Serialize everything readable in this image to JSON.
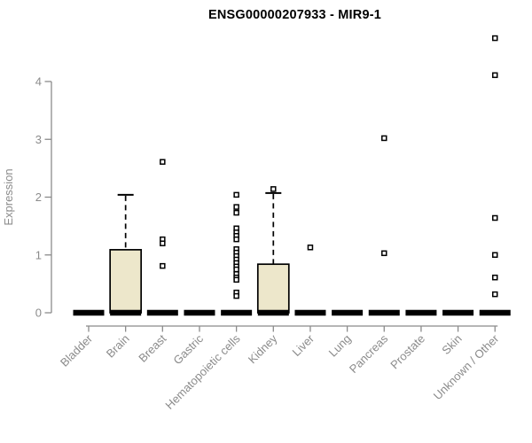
{
  "title": "ENSG00000207933 - MIR9-1",
  "chart_data": {
    "type": "boxplot",
    "title": "ENSG00000207933 - MIR9-1",
    "xlabel": "",
    "ylabel": "Expression",
    "ylim": [
      0,
      4.8
    ],
    "yticks": [
      0,
      1,
      2,
      3,
      4
    ],
    "grid": false,
    "legend_position": "none",
    "categories": [
      "Bladder",
      "Brain",
      "Breast",
      "Gastric",
      "Hematopoietic cells",
      "Kidney",
      "Liver",
      "Lung",
      "Pancreas",
      "Prostate",
      "Skin",
      "Unknown / Other"
    ],
    "boxes": [
      {
        "category": "Bladder",
        "median": 0,
        "q1": 0,
        "q3": 0,
        "whisker_low": 0,
        "whisker_high": 0,
        "outliers": []
      },
      {
        "category": "Brain",
        "median": 0,
        "q1": 0,
        "q3": 1.09,
        "whisker_low": 0,
        "whisker_high": 2.04,
        "outliers": []
      },
      {
        "category": "Breast",
        "median": 0,
        "q1": 0,
        "q3": 0,
        "whisker_low": 0,
        "whisker_high": 0,
        "outliers": [
          2.61,
          1.27,
          1.2,
          0.81
        ]
      },
      {
        "category": "Gastric",
        "median": 0,
        "q1": 0,
        "q3": 0,
        "whisker_low": 0,
        "whisker_high": 0,
        "outliers": []
      },
      {
        "category": "Hematopoietic cells",
        "median": 0,
        "q1": 0,
        "q3": 0,
        "whisker_low": 0,
        "whisker_high": 0,
        "outliers": [
          2.04,
          1.83,
          1.73,
          1.46,
          1.39,
          1.33,
          1.27,
          1.1,
          1.04,
          0.98,
          0.92,
          0.86,
          0.8,
          0.75,
          0.67,
          0.61,
          0.57,
          0.35,
          0.29
        ]
      },
      {
        "category": "Kidney",
        "median": 0,
        "q1": 0,
        "q3": 0.84,
        "whisker_low": 0,
        "whisker_high": 2.07,
        "outliers": [
          2.14
        ]
      },
      {
        "category": "Liver",
        "median": 0,
        "q1": 0,
        "q3": 0,
        "whisker_low": 0,
        "whisker_high": 0,
        "outliers": [
          1.13
        ]
      },
      {
        "category": "Lung",
        "median": 0,
        "q1": 0,
        "q3": 0,
        "whisker_low": 0,
        "whisker_high": 0,
        "outliers": []
      },
      {
        "category": "Pancreas",
        "median": 0,
        "q1": 0,
        "q3": 0,
        "whisker_low": 0,
        "whisker_high": 0,
        "outliers": [
          3.02,
          1.03
        ]
      },
      {
        "category": "Prostate",
        "median": 0,
        "q1": 0,
        "q3": 0,
        "whisker_low": 0,
        "whisker_high": 0,
        "outliers": []
      },
      {
        "category": "Skin",
        "median": 0,
        "q1": 0,
        "q3": 0,
        "whisker_low": 0,
        "whisker_high": 0,
        "outliers": []
      },
      {
        "category": "Unknown / Other",
        "median": 0,
        "q1": 0,
        "q3": 0,
        "whisker_low": 0,
        "whisker_high": 0,
        "outliers": [
          4.75,
          4.11,
          1.64,
          1.0,
          0.61,
          0.32
        ]
      }
    ],
    "colors": {
      "box_fill": "#EDE7CB",
      "box_stroke": "#000000",
      "median": "#000000",
      "outlier_stroke": "#000000",
      "axis": "#8B8B8B",
      "tick_label": "#8B8B8B",
      "title": "#000000",
      "background": "#FFFFFF"
    }
  }
}
